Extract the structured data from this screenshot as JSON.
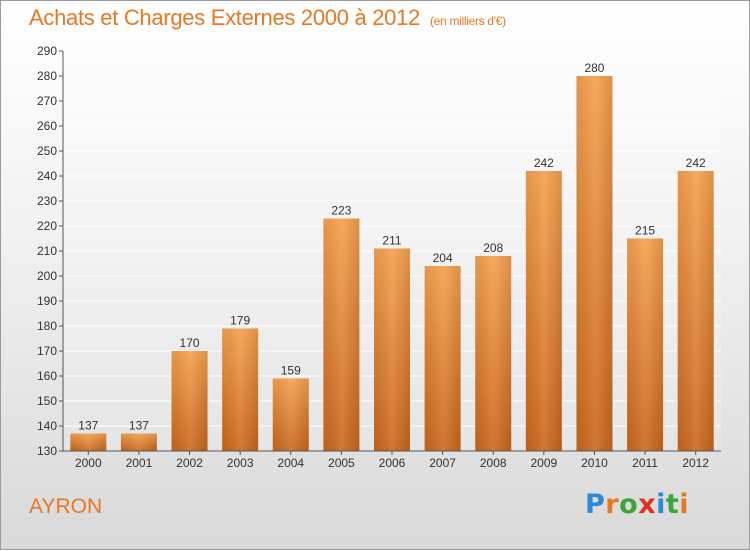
{
  "title": "Achats et Charges Externes 2000 à 2012",
  "unit": "(en milliers d'€)",
  "commune": "AYRON",
  "brand": {
    "letters": [
      "P",
      "r",
      "o",
      "x",
      "i",
      "t",
      "i"
    ],
    "colors": [
      "#2e8ad8",
      "#e87722",
      "#3aa63a",
      "#e03020",
      "#2e8ad8",
      "#3aa63a",
      "#e87722"
    ]
  },
  "colors": {
    "accent": "#e87722",
    "bar_top": "#f5a04e",
    "bar_bottom": "#c9671c",
    "text": "#333333"
  },
  "chart_data": {
    "type": "bar",
    "categories": [
      "2000",
      "2001",
      "2002",
      "2003",
      "2004",
      "2005",
      "2006",
      "2007",
      "2008",
      "2009",
      "2010",
      "2011",
      "2012"
    ],
    "values": [
      137,
      137,
      170,
      179,
      159,
      223,
      211,
      204,
      208,
      242,
      280,
      215,
      242
    ],
    "ylim": [
      130,
      290
    ],
    "yticks": [
      130,
      140,
      150,
      160,
      170,
      180,
      190,
      200,
      210,
      220,
      230,
      240,
      250,
      260,
      270,
      280,
      290
    ],
    "grid": true
  }
}
